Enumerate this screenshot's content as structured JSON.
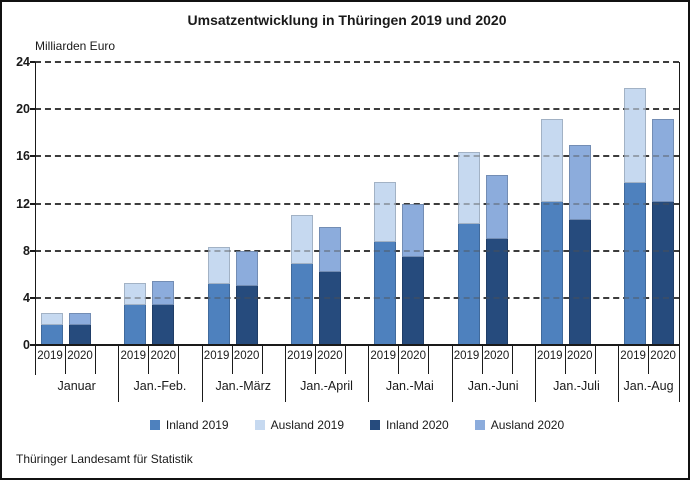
{
  "title": "Umsatzentwicklung in Thüringen 2019 und 2020",
  "y_axis_label": "Milliarden Euro",
  "source": "Thüringer Landesamt für Statistik",
  "chart_data": {
    "type": "bar",
    "stacked": true,
    "title": "Umsatzentwicklung in Thüringen 2019 und 2020",
    "ylabel": "Milliarden Euro",
    "ylim": [
      0,
      24
    ],
    "yticks": [
      0,
      4,
      8,
      12,
      16,
      20,
      24
    ],
    "grid": "horizontal-dashed",
    "legend_position": "bottom",
    "categories": [
      "Januar",
      "Jan.-Feb.",
      "Jan.-März",
      "Jan.-April",
      "Jan.-Mai",
      "Jan.-Juni",
      "Jan.-Juli",
      "Jan.-Aug"
    ],
    "bar_labels": [
      "2019",
      "2020"
    ],
    "series": [
      {
        "name": "Inland 2019",
        "bar": "2019",
        "stack": "bottom",
        "color": "#4E81BE",
        "values": [
          1.7,
          3.4,
          5.2,
          6.9,
          8.7,
          10.3,
          12.1,
          13.7
        ]
      },
      {
        "name": "Ausland 2019",
        "bar": "2019",
        "stack": "top",
        "color": "#C6D9F0",
        "values": [
          1.0,
          1.9,
          3.1,
          4.1,
          5.1,
          6.1,
          7.1,
          8.1
        ]
      },
      {
        "name": "Inland 2020",
        "bar": "2020",
        "stack": "bottom",
        "color": "#264B7D",
        "values": [
          1.7,
          3.4,
          5.0,
          6.2,
          7.5,
          9.0,
          10.6,
          12.1
        ]
      },
      {
        "name": "Ausland 2020",
        "bar": "2020",
        "stack": "top",
        "color": "#8CACDC",
        "values": [
          1.0,
          2.0,
          3.0,
          3.8,
          4.5,
          5.4,
          6.4,
          7.1
        ]
      }
    ]
  }
}
